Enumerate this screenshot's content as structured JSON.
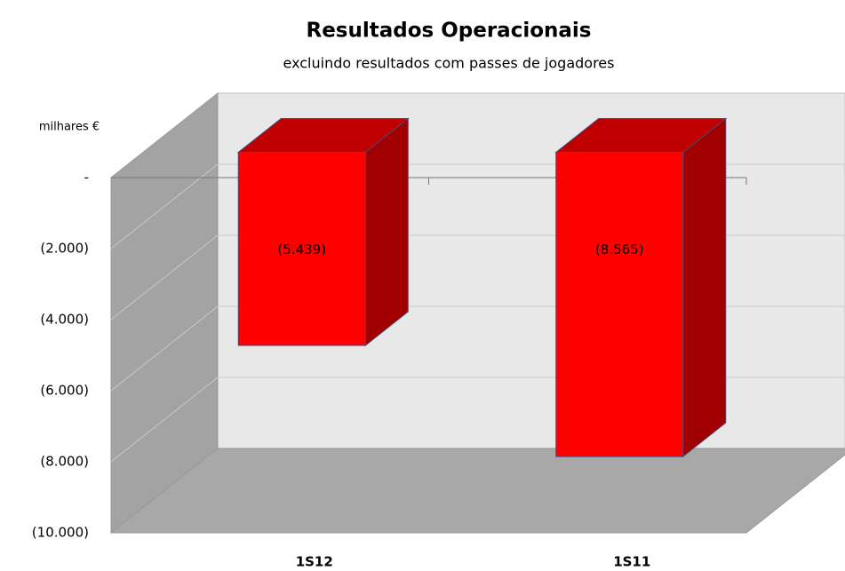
{
  "chart_data": {
    "type": "bar3d",
    "title": "Resultados Operacionais",
    "subtitle": "excluindo resultados com passes de jogadores",
    "y_label": "milhares €",
    "categories": [
      "1S12",
      "1S11"
    ],
    "values": [
      -5439,
      -8565
    ],
    "value_labels": [
      "(5.439)",
      "(8.565)"
    ],
    "color": "#ff0000",
    "ylim": [
      -10000,
      0
    ],
    "yticks": [
      {
        "value": 0,
        "label": "-"
      },
      {
        "value": -2000,
        "label": "(2.000)"
      },
      {
        "value": -4000,
        "label": "(4.000)"
      },
      {
        "value": -6000,
        "label": "(6.000)"
      },
      {
        "value": -8000,
        "label": "(8.000)"
      },
      {
        "value": -10000,
        "label": "(10.000)"
      }
    ],
    "grid": true
  }
}
